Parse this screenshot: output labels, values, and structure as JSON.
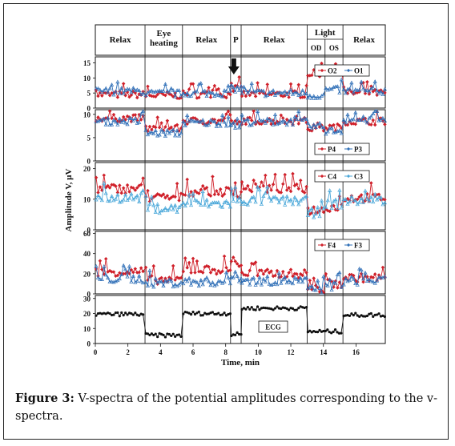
{
  "caption": {
    "label": "Figure 3:",
    "text": "V-spectra of the potential amplitudes corresponding to the v-spectra."
  },
  "figure": {
    "phases": [
      {
        "label": "Relax",
        "start": 0,
        "end": 3.05
      },
      {
        "label": "Eye\nheating",
        "start": 3.05,
        "end": 5.35
      },
      {
        "label": "Relax",
        "start": 5.35,
        "end": 8.3
      },
      {
        "label": "P",
        "start": 8.3,
        "end": 8.95
      },
      {
        "label": "Relax",
        "start": 8.95,
        "end": 13.0
      },
      {
        "label": "Light",
        "start": 13.0,
        "end": 15.2,
        "sub": [
          {
            "label": "OD",
            "start": 13.0,
            "end": 14.1
          },
          {
            "label": "OS",
            "start": 14.1,
            "end": 15.2
          }
        ]
      },
      {
        "label": "Relax",
        "start": 15.2,
        "end": 17.8
      }
    ],
    "arrow_at": 8.5,
    "y_axis_label": "Amplitude V, μV",
    "x_axis_label": "Time, min",
    "x_ticks": [
      0,
      2,
      4,
      6,
      8,
      10,
      12,
      14,
      16
    ],
    "x_range": [
      0,
      17.8
    ]
  },
  "chart_data": [
    {
      "type": "line",
      "panel": "O2-O1",
      "ylim": [
        0,
        17
      ],
      "yticks": [
        0,
        5,
        10,
        15
      ],
      "legend_position": "upper-right",
      "segments": [
        [
          0,
          3.05,
          4.5,
          5.6
        ],
        [
          3.05,
          5.35,
          4.2,
          4.8
        ],
        [
          5.35,
          8.3,
          4.5,
          5.0
        ],
        [
          8.3,
          8.95,
          6.5,
          6.5
        ],
        [
          8.95,
          13.0,
          4.6,
          5.0
        ],
        [
          13.0,
          14.1,
          11.5,
          4.2
        ],
        [
          14.1,
          15.2,
          13.5,
          6.0
        ],
        [
          15.2,
          17.8,
          5.0,
          5.6
        ]
      ],
      "series": [
        {
          "name": "O2",
          "color": "#d0202a",
          "marker": "diamond"
        },
        {
          "name": "O1",
          "color": "#2f6fb7",
          "marker": "triangle"
        }
      ]
    },
    {
      "type": "line",
      "panel": "P4-P3",
      "ylim": [
        0,
        11
      ],
      "yticks": [
        0,
        5,
        10
      ],
      "legend_position": "lower-right",
      "segments": [
        [
          0,
          3.05,
          9.2,
          8.5
        ],
        [
          3.05,
          5.35,
          7.0,
          6.0
        ],
        [
          5.35,
          8.3,
          8.6,
          8.2
        ],
        [
          8.3,
          8.95,
          8.0,
          7.5
        ],
        [
          8.95,
          13.0,
          8.6,
          8.4
        ],
        [
          13.0,
          14.1,
          7.0,
          7.4
        ],
        [
          14.1,
          15.2,
          7.2,
          6.5
        ],
        [
          15.2,
          17.8,
          8.5,
          8.8
        ]
      ],
      "series": [
        {
          "name": "P4",
          "color": "#d0202a",
          "marker": "diamond"
        },
        {
          "name": "P3",
          "color": "#2f6fb7",
          "marker": "triangle"
        }
      ]
    },
    {
      "type": "line",
      "panel": "C4-C3",
      "ylim": [
        0,
        22
      ],
      "yticks": [
        0,
        10,
        20
      ],
      "legend_position": "upper-right",
      "segments": [
        [
          0,
          3.05,
          13.5,
          10.5
        ],
        [
          3.05,
          5.35,
          10.5,
          7.0
        ],
        [
          5.35,
          8.3,
          12.5,
          8.5
        ],
        [
          8.3,
          8.95,
          12.0,
          9.5
        ],
        [
          8.95,
          13.0,
          13.5,
          9.5
        ],
        [
          13.0,
          14.1,
          6.5,
          5.5
        ],
        [
          14.1,
          15.2,
          7.5,
          8.5
        ],
        [
          15.2,
          17.8,
          10.5,
          9.5
        ]
      ],
      "series": [
        {
          "name": "C4",
          "color": "#d0202a",
          "marker": "diamond"
        },
        {
          "name": "C3",
          "color": "#49a7d9",
          "marker": "triangle"
        }
      ]
    },
    {
      "type": "line",
      "panel": "F4-F3",
      "ylim": [
        0,
        62
      ],
      "yticks": [
        0,
        20,
        40,
        60
      ],
      "legend_position": "upper-right",
      "segments": [
        [
          0,
          3.05,
          22,
          15
        ],
        [
          3.05,
          5.35,
          14,
          11
        ],
        [
          5.35,
          8.3,
          24,
          12
        ],
        [
          8.3,
          8.95,
          30,
          16
        ],
        [
          8.95,
          13.0,
          20,
          13
        ],
        [
          13.0,
          14.1,
          5,
          4
        ],
        [
          14.1,
          15.2,
          10,
          8
        ],
        [
          15.2,
          17.8,
          16,
          13
        ]
      ],
      "series": [
        {
          "name": "F4",
          "color": "#d0202a",
          "marker": "diamond"
        },
        {
          "name": "F3",
          "color": "#2f6fb7",
          "marker": "triangle"
        }
      ]
    },
    {
      "type": "line",
      "panel": "ECG",
      "ylim": [
        0,
        32
      ],
      "yticks": [
        0,
        10,
        20,
        30
      ],
      "legend_position": "center-right",
      "segments": [
        [
          0,
          3.05,
          19.5,
          0
        ],
        [
          3.05,
          5.35,
          5.5,
          0
        ],
        [
          5.35,
          8.3,
          20.0,
          0
        ],
        [
          8.3,
          8.95,
          6.0,
          0
        ],
        [
          8.95,
          13.0,
          23.5,
          0
        ],
        [
          13.0,
          15.2,
          8.0,
          0
        ],
        [
          15.2,
          17.8,
          19.0,
          0
        ]
      ],
      "series": [
        {
          "name": "ECG",
          "color": "#111111",
          "marker": "dot"
        }
      ]
    }
  ]
}
